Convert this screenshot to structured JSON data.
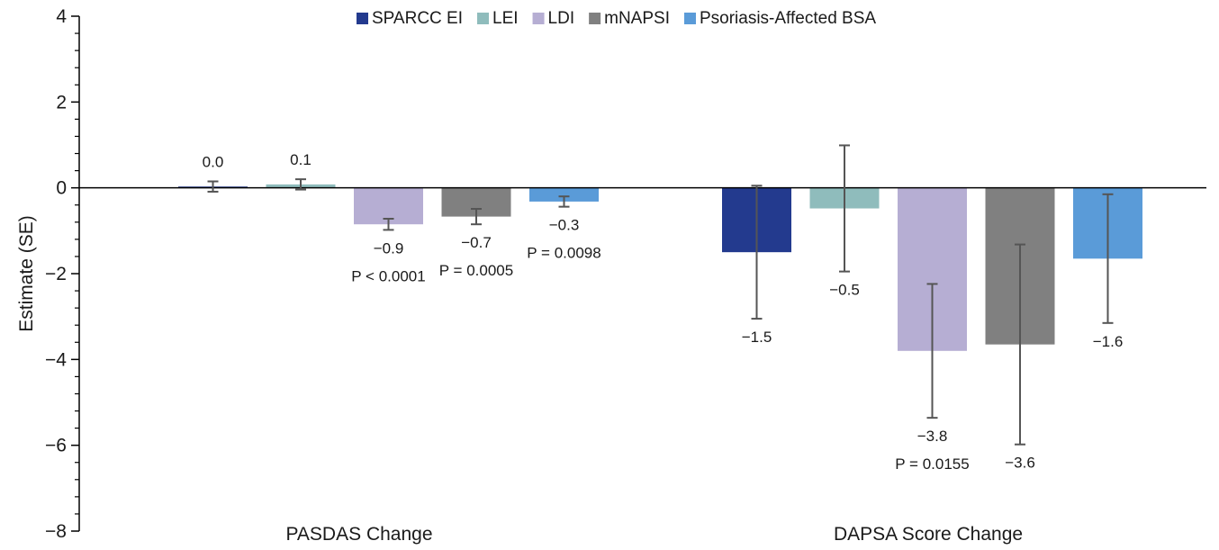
{
  "chart_data": {
    "type": "bar",
    "title": "",
    "ylabel": "Estimate (SE)",
    "xlabel": "",
    "ylim": [
      -8,
      4
    ],
    "yticks": [
      4,
      2,
      0,
      -2,
      -4,
      -6,
      -8
    ],
    "ytick_labels": [
      "4",
      "2",
      "0",
      "−2",
      "−4",
      "−6",
      "−8"
    ],
    "grid": false,
    "legend_position": "top",
    "categories": [
      "PASDAS Change",
      "DAPSA Score Change"
    ],
    "series": [
      {
        "name": "SPARCC EI",
        "color": "#233a8e",
        "values": [
          0.03,
          -1.5
        ],
        "se": [
          0.12,
          1.55
        ],
        "labels": [
          "0.0",
          "−1.5"
        ],
        "p": [
          "",
          ""
        ]
      },
      {
        "name": "LEI",
        "color": "#8fbcbc",
        "values": [
          0.08,
          -0.48
        ],
        "se": [
          0.12,
          1.47
        ],
        "labels": [
          "0.1",
          "−0.5"
        ],
        "p": [
          "",
          ""
        ]
      },
      {
        "name": "LDI",
        "color": "#b6aed3",
        "values": [
          -0.85,
          -3.8
        ],
        "se": [
          0.13,
          1.56
        ],
        "labels": [
          "−0.9",
          "−3.8"
        ],
        "p": [
          "P < 0.0001",
          "P = 0.0155"
        ]
      },
      {
        "name": "mNAPSI",
        "color": "#808080",
        "values": [
          -0.67,
          -3.65
        ],
        "se": [
          0.18,
          2.33
        ],
        "labels": [
          "−0.7",
          "−3.6"
        ],
        "p": [
          "P = 0.0005",
          ""
        ]
      },
      {
        "name": "Psoriasis-Affected BSA",
        "color": "#5a9bd8",
        "values": [
          -0.32,
          -1.65
        ],
        "se": [
          0.12,
          1.5
        ],
        "labels": [
          "−0.3",
          "−1.6"
        ],
        "p": [
          "P = 0.0098",
          ""
        ]
      }
    ]
  }
}
